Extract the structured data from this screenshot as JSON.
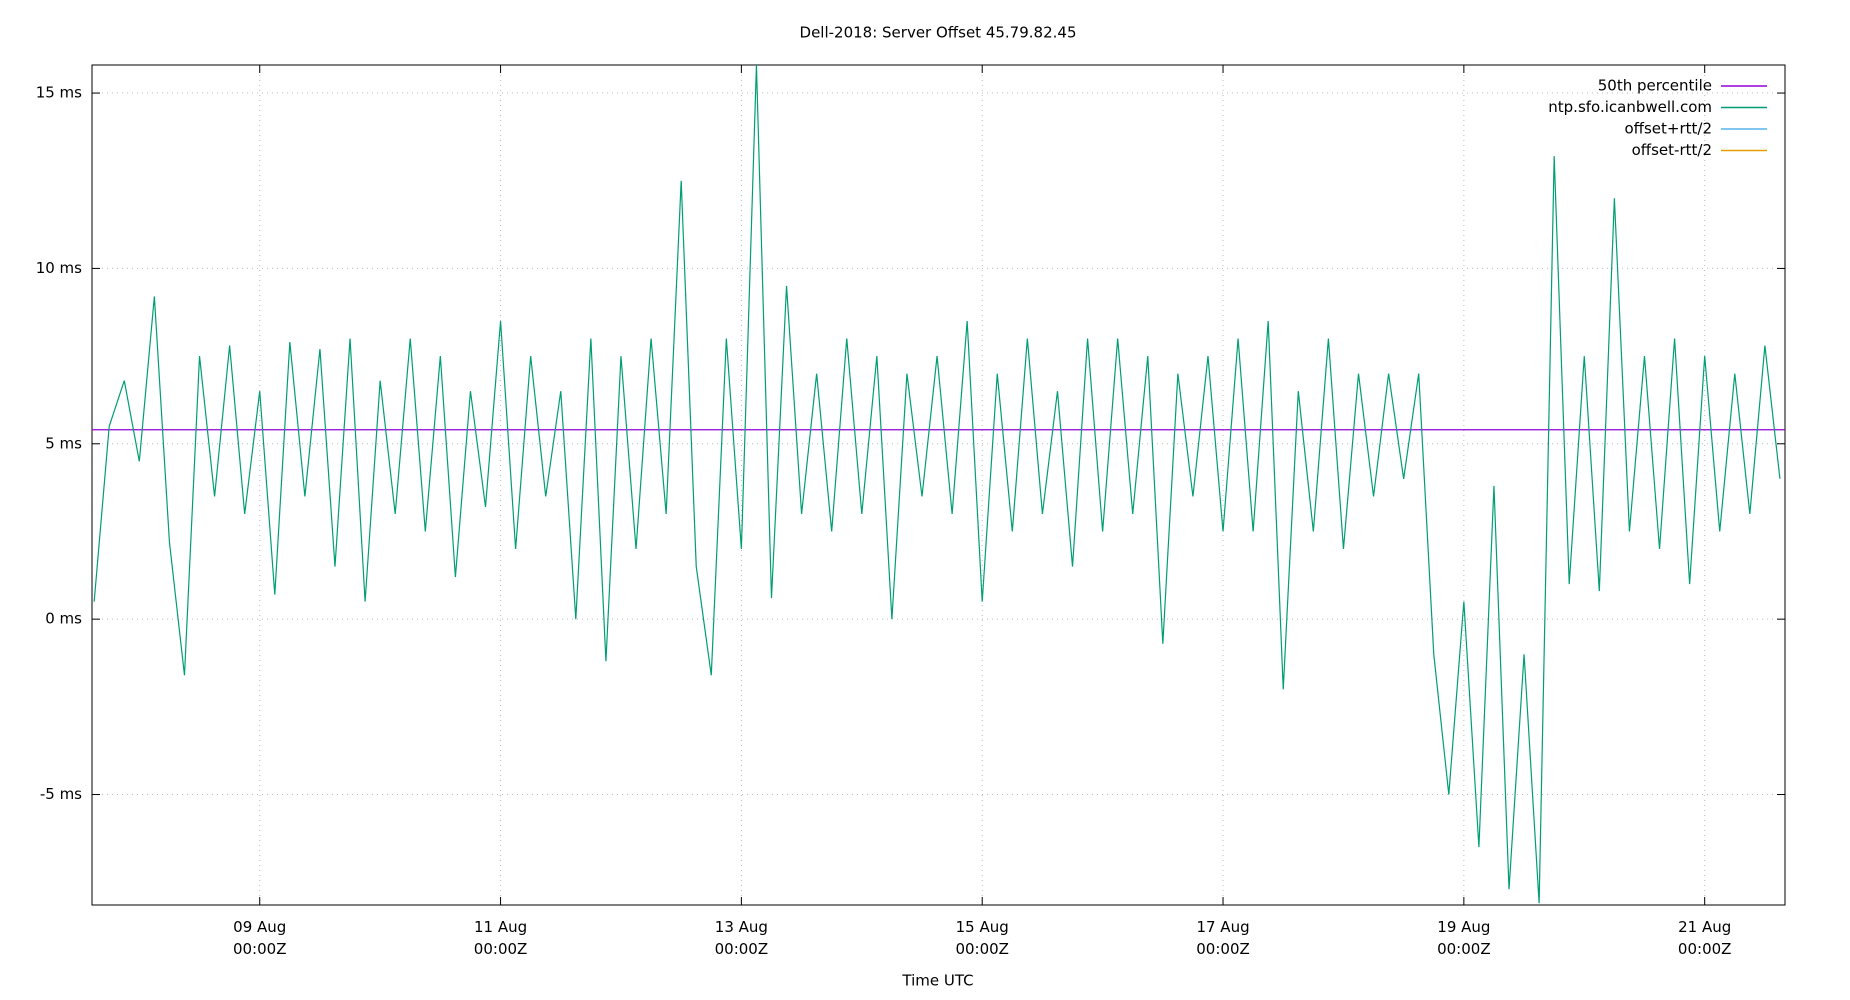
{
  "chart_data": {
    "type": "line",
    "title": "Dell-2018: Server Offset 45.79.82.45",
    "xlabel": "Time UTC",
    "reference_lines": [
      {
        "name": "50th percentile",
        "color": "#9400d3",
        "value": 5.4
      }
    ],
    "x": [
      7.625,
      7.75,
      7.875,
      8.0,
      8.125,
      8.25,
      8.375,
      8.5,
      8.625,
      8.75,
      8.875,
      9.0,
      9.125,
      9.25,
      9.375,
      9.5,
      9.625,
      9.75,
      9.875,
      10.0,
      10.125,
      10.25,
      10.375,
      10.5,
      10.625,
      10.75,
      10.875,
      11.0,
      11.125,
      11.25,
      11.375,
      11.5,
      11.625,
      11.75,
      11.875,
      12.0,
      12.125,
      12.25,
      12.375,
      12.5,
      12.625,
      12.75,
      12.875,
      13.0,
      13.125,
      13.25,
      13.375,
      13.5,
      13.625,
      13.75,
      13.875,
      14.0,
      14.125,
      14.25,
      14.375,
      14.5,
      14.625,
      14.75,
      14.875,
      15.0,
      15.125,
      15.25,
      15.375,
      15.5,
      15.625,
      15.75,
      15.875,
      16.0,
      16.125,
      16.25,
      16.375,
      16.5,
      16.625,
      16.75,
      16.875,
      17.0,
      17.125,
      17.25,
      17.375,
      17.5,
      17.625,
      17.75,
      17.875,
      18.0,
      18.125,
      18.25,
      18.375,
      18.5,
      18.625,
      18.75,
      18.875,
      19.0,
      19.125,
      19.25,
      19.375,
      19.5,
      19.625,
      19.75,
      19.875,
      20.0,
      20.125,
      20.25,
      20.375,
      20.5,
      20.625,
      20.75,
      20.875,
      21.0,
      21.125,
      21.25,
      21.375,
      21.5,
      21.625
    ],
    "series": [
      {
        "name": "ntp.sfo.icanbwell.com",
        "color": "#009e73",
        "values": [
          0.5,
          5.5,
          6.8,
          4.5,
          9.2,
          2.2,
          -1.6,
          7.5,
          3.5,
          7.8,
          3.0,
          6.5,
          0.7,
          7.9,
          3.5,
          7.7,
          1.5,
          8.0,
          0.5,
          6.8,
          3.0,
          8.0,
          2.5,
          7.5,
          1.2,
          6.5,
          3.2,
          8.5,
          2.0,
          7.5,
          3.5,
          6.5,
          0.0,
          8.0,
          -1.2,
          7.5,
          2.0,
          8.0,
          3.0,
          12.5,
          1.5,
          -1.6,
          8.0,
          2.0,
          15.8,
          0.6,
          9.5,
          3.0,
          7.0,
          2.5,
          8.0,
          3.0,
          7.5,
          0.0,
          7.0,
          3.5,
          7.5,
          3.0,
          8.5,
          0.5,
          7.0,
          2.5,
          8.0,
          3.0,
          6.5,
          1.5,
          8.0,
          2.5,
          8.0,
          3.0,
          7.5,
          -0.7,
          7.0,
          3.5,
          7.5,
          2.5,
          8.0,
          2.5,
          8.5,
          -2.0,
          6.5,
          2.5,
          8.0,
          2.0,
          7.0,
          3.5,
          7.0,
          4.0,
          7.0,
          -1.0,
          -5.0,
          0.5,
          -6.5,
          3.8,
          -7.7,
          -1.0,
          -8.1,
          13.2,
          1.0,
          7.5,
          0.8,
          12.0,
          2.5,
          7.5,
          2.0,
          8.0,
          1.0,
          7.5,
          2.5,
          7.0,
          3.0,
          7.8,
          4.0
        ]
      },
      {
        "name": "offset+rtt/2",
        "color": "#56b4e9"
      },
      {
        "name": "offset-rtt/2",
        "color": "#e69f00"
      }
    ],
    "xlim": [
      7.607,
      21.667
    ],
    "xticks": [
      {
        "value": 9,
        "label": "09 Aug\n00:00Z"
      },
      {
        "value": 11,
        "label": "11 Aug\n00:00Z"
      },
      {
        "value": 13,
        "label": "13 Aug\n00:00Z"
      },
      {
        "value": 15,
        "label": "15 Aug\n00:00Z"
      },
      {
        "value": 17,
        "label": "17 Aug\n00:00Z"
      },
      {
        "value": 19,
        "label": "19 Aug\n00:00Z"
      },
      {
        "value": 21,
        "label": "21 Aug\n00:00Z"
      }
    ],
    "ylim": [
      -8.15,
      15.8
    ],
    "yticks": [
      {
        "value": -5,
        "label": "-5 ms"
      },
      {
        "value": 0,
        "label": "0 ms"
      },
      {
        "value": 5,
        "label": "5 ms"
      },
      {
        "value": 10,
        "label": "10 ms"
      },
      {
        "value": 15,
        "label": "15 ms"
      }
    ],
    "grid": true,
    "legend": "top-right"
  }
}
